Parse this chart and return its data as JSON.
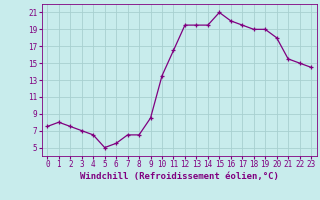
{
  "hours": [
    0,
    1,
    2,
    3,
    4,
    5,
    6,
    7,
    8,
    9,
    10,
    11,
    12,
    13,
    14,
    15,
    16,
    17,
    18,
    19,
    20,
    21,
    22,
    23
  ],
  "values": [
    7.5,
    8.0,
    7.5,
    7.0,
    6.5,
    5.0,
    5.5,
    6.5,
    6.5,
    8.5,
    13.5,
    16.5,
    19.5,
    19.5,
    19.5,
    21.0,
    20.0,
    19.5,
    19.0,
    19.0,
    18.0,
    15.5,
    15.0,
    14.5
  ],
  "line_color": "#800080",
  "marker": "+",
  "marker_color": "#800080",
  "bg_color": "#c8ecec",
  "grid_color": "#a8d0d0",
  "axis_label_color": "#800080",
  "tick_color": "#800080",
  "xlabel": "Windchill (Refroidissement éolien,°C)",
  "ylim": [
    4,
    22
  ],
  "yticks": [
    5,
    7,
    9,
    11,
    13,
    15,
    17,
    19,
    21
  ],
  "xlim": [
    -0.5,
    23.5
  ],
  "label_fontsize": 6.5,
  "tick_fontsize": 5.5
}
